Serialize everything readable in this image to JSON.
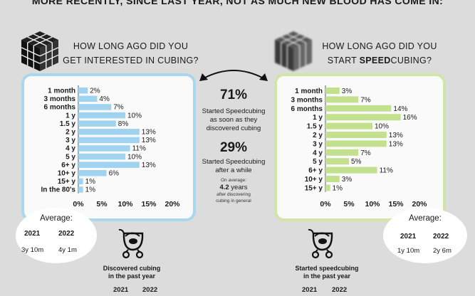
{
  "headline": "MORE RECENTLY, SINCE LAST YEAR, NOT AS MUCH NEW BLOOD HAS COME IN:",
  "left": {
    "question_line1": "HOW LONG AGO DID YOU",
    "question_line2": "GET INTERESTED IN CUBING?",
    "average_title": "Average:",
    "average_years": [
      "2021",
      "2022"
    ],
    "average_values": [
      "3y 10m",
      "4y 1m"
    ],
    "footer_line1": "Discovered cubing",
    "footer_line2": "in the past year",
    "footer_years": [
      "2021",
      "2022"
    ]
  },
  "right": {
    "question_line1": "HOW LONG AGO DID YOU",
    "question_line2_pre": "START ",
    "question_line2_bold": "SPEED",
    "question_line2_post": "CUBING?",
    "average_title": "Average:",
    "average_years": [
      "2021",
      "2022"
    ],
    "average_values": [
      "1y 10m",
      "2y 6m"
    ],
    "footer_line1": "Started speedcubing",
    "footer_line2": "in the past year",
    "footer_years": [
      "2021",
      "2022"
    ]
  },
  "middle": {
    "pct1": "71%",
    "text1": [
      "Started Speedcubing",
      "as soon as they",
      "discovered cubing"
    ],
    "pct2": "29%",
    "text2": [
      "Started Speedcubing",
      "after a while"
    ],
    "small1": "On average:",
    "num_bold": "4.2",
    "num_rest": " years",
    "small2": [
      "after discovering",
      "cubing in general"
    ]
  },
  "colors": {
    "left_bar": "#9fd3ef",
    "right_bar": "#c3e08e",
    "left_border": "#a9d8ee",
    "right_border": "#d2e5a6"
  },
  "chart_data": [
    {
      "type": "bar",
      "orientation": "horizontal",
      "title": "HOW LONG AGO DID YOU GET INTERESTED IN CUBING?",
      "categories": [
        "1 month",
        "3 months",
        "6 months",
        "1 y",
        "1.5 y",
        "2 y",
        "3 y",
        "4 y",
        "5 y",
        "6+ y",
        "10+ y",
        "15+ y",
        "In the 80's"
      ],
      "values": [
        2,
        4,
        7,
        10,
        8,
        13,
        13,
        11,
        10,
        13,
        6,
        1,
        1
      ],
      "value_labels": [
        "2%",
        "4%",
        "7%",
        "10%",
        "8%",
        "13%",
        "13%",
        "11%",
        "10%",
        "13%",
        "6%",
        "1%",
        "1%"
      ],
      "xlim": [
        0,
        20
      ],
      "xticks": [
        "0%",
        "5%",
        "10%",
        "15%",
        "20%"
      ]
    },
    {
      "type": "bar",
      "orientation": "horizontal",
      "title": "HOW LONG AGO DID YOU START SPEEDCUBING?",
      "categories": [
        "1 month",
        "3 months",
        "6 months",
        "1 y",
        "1.5 y",
        "2 y",
        "3 y",
        "4 y",
        "5 y",
        "6+ y",
        "10+ y",
        "15+ y"
      ],
      "values": [
        3,
        7,
        14,
        16,
        10,
        13,
        13,
        7,
        5,
        11,
        3,
        1
      ],
      "value_labels": [
        "3%",
        "7%",
        "14%",
        "16%",
        "10%",
        "13%",
        "13%",
        "7%",
        "5%",
        "11%",
        "3%",
        "1%"
      ],
      "xlim": [
        0,
        20
      ],
      "xticks": [
        "0%",
        "5%",
        "10%",
        "15%",
        "20%"
      ]
    }
  ]
}
